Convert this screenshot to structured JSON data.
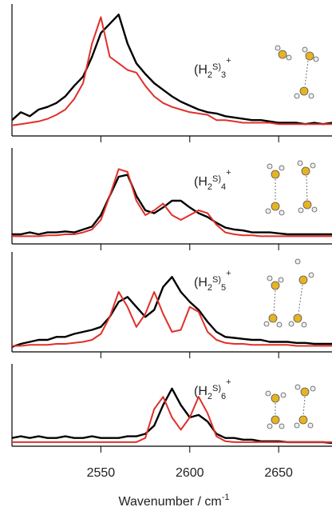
{
  "chart_data": [
    {
      "type": "line",
      "label": [
        "(H",
        "2",
        "S)",
        "3",
        "+"
      ],
      "x": [
        2500,
        2505,
        2510,
        2515,
        2520,
        2525,
        2530,
        2535,
        2540,
        2545,
        2550,
        2555,
        2560,
        2565,
        2570,
        2575,
        2580,
        2585,
        2590,
        2595,
        2600,
        2605,
        2610,
        2615,
        2620,
        2625,
        2630,
        2635,
        2640,
        2645,
        2650,
        2655,
        2660,
        2665,
        2670,
        2675,
        2680
      ],
      "xlim": [
        2500,
        2680
      ],
      "ylim": [
        0,
        1
      ],
      "series": [
        {
          "color": "#000000",
          "values": [
            0.12,
            0.18,
            0.15,
            0.2,
            0.22,
            0.25,
            0.3,
            0.38,
            0.45,
            0.6,
            0.78,
            0.85,
            0.92,
            0.7,
            0.55,
            0.47,
            0.4,
            0.35,
            0.3,
            0.26,
            0.23,
            0.2,
            0.18,
            0.17,
            0.15,
            0.14,
            0.13,
            0.12,
            0.12,
            0.11,
            0.1,
            0.1,
            0.1,
            0.09,
            0.1,
            0.09,
            0.1
          ]
        },
        {
          "color": "#e0302a",
          "values": [
            0.08,
            0.09,
            0.1,
            0.11,
            0.13,
            0.16,
            0.2,
            0.28,
            0.4,
            0.7,
            0.9,
            0.6,
            0.55,
            0.5,
            0.48,
            0.38,
            0.3,
            0.25,
            0.22,
            0.2,
            0.18,
            0.17,
            0.16,
            0.12,
            0.12,
            0.11,
            0.1,
            0.1,
            0.1,
            0.1,
            0.09,
            0.09,
            0.09,
            0.09,
            0.09,
            0.09,
            0.09
          ]
        }
      ]
    },
    {
      "type": "line",
      "label": [
        "(H",
        "2",
        "S)",
        "4",
        "+"
      ],
      "x": [
        2500,
        2505,
        2510,
        2515,
        2520,
        2525,
        2530,
        2535,
        2540,
        2545,
        2550,
        2555,
        2560,
        2565,
        2570,
        2575,
        2580,
        2585,
        2590,
        2595,
        2600,
        2605,
        2610,
        2615,
        2620,
        2625,
        2630,
        2635,
        2640,
        2645,
        2650,
        2655,
        2660,
        2665,
        2670,
        2675,
        2680
      ],
      "xlim": [
        2500,
        2680
      ],
      "ylim": [
        0,
        1
      ],
      "series": [
        {
          "color": "#000000",
          "values": [
            0.1,
            0.1,
            0.12,
            0.1,
            0.12,
            0.12,
            0.13,
            0.12,
            0.15,
            0.18,
            0.3,
            0.5,
            0.7,
            0.72,
            0.5,
            0.35,
            0.32,
            0.38,
            0.45,
            0.45,
            0.38,
            0.32,
            0.28,
            0.22,
            0.17,
            0.15,
            0.14,
            0.12,
            0.12,
            0.12,
            0.11,
            0.1,
            0.1,
            0.1,
            0.1,
            0.1,
            0.1
          ]
        },
        {
          "color": "#e0302a",
          "values": [
            0.08,
            0.08,
            0.08,
            0.08,
            0.09,
            0.09,
            0.1,
            0.1,
            0.12,
            0.15,
            0.25,
            0.5,
            0.78,
            0.75,
            0.45,
            0.3,
            0.35,
            0.42,
            0.3,
            0.25,
            0.3,
            0.35,
            0.32,
            0.2,
            0.12,
            0.1,
            0.09,
            0.09,
            0.08,
            0.08,
            0.08,
            0.08,
            0.08,
            0.08,
            0.08,
            0.08,
            0.08
          ]
        }
      ]
    },
    {
      "type": "line",
      "label": [
        "(H",
        "2",
        "S)",
        "5",
        "+"
      ],
      "x": [
        2500,
        2505,
        2510,
        2515,
        2520,
        2525,
        2530,
        2535,
        2540,
        2545,
        2550,
        2555,
        2560,
        2565,
        2570,
        2575,
        2580,
        2585,
        2590,
        2595,
        2600,
        2605,
        2610,
        2615,
        2620,
        2625,
        2630,
        2635,
        2640,
        2645,
        2650,
        2655,
        2660,
        2665,
        2670,
        2675,
        2680
      ],
      "xlim": [
        2500,
        2680
      ],
      "ylim": [
        0,
        1
      ],
      "series": [
        {
          "color": "#000000",
          "values": [
            0.05,
            0.08,
            0.1,
            0.12,
            0.12,
            0.15,
            0.15,
            0.18,
            0.2,
            0.22,
            0.25,
            0.35,
            0.5,
            0.55,
            0.45,
            0.35,
            0.42,
            0.65,
            0.75,
            0.6,
            0.5,
            0.42,
            0.3,
            0.2,
            0.15,
            0.14,
            0.13,
            0.12,
            0.12,
            0.1,
            0.1,
            0.1,
            0.09,
            0.09,
            0.08,
            0.08,
            0.08
          ]
        },
        {
          "color": "#e0302a",
          "values": [
            0.06,
            0.06,
            0.07,
            0.07,
            0.07,
            0.08,
            0.08,
            0.09,
            0.1,
            0.12,
            0.18,
            0.35,
            0.6,
            0.45,
            0.25,
            0.38,
            0.6,
            0.38,
            0.2,
            0.22,
            0.45,
            0.4,
            0.2,
            0.12,
            0.09,
            0.08,
            0.08,
            0.07,
            0.07,
            0.07,
            0.07,
            0.07,
            0.06,
            0.06,
            0.06,
            0.06,
            0.06
          ]
        }
      ]
    },
    {
      "type": "line",
      "label": [
        "(H",
        "2",
        "S)",
        "6",
        "+"
      ],
      "x": [
        2500,
        2505,
        2510,
        2515,
        2520,
        2525,
        2530,
        2535,
        2540,
        2545,
        2550,
        2555,
        2560,
        2565,
        2570,
        2575,
        2580,
        2585,
        2590,
        2595,
        2600,
        2605,
        2610,
        2615,
        2620,
        2625,
        2630,
        2635,
        2640,
        2645,
        2650,
        2655,
        2660,
        2665,
        2670,
        2675,
        2680
      ],
      "xlim": [
        2500,
        2680
      ],
      "ylim": [
        0,
        1
      ],
      "xticks": [
        2550,
        2600,
        2650
      ],
      "xlabel": [
        "Wavenumber / cm",
        "-1"
      ],
      "series": [
        {
          "color": "#000000",
          "values": [
            0.1,
            0.12,
            0.1,
            0.12,
            0.1,
            0.1,
            0.12,
            0.1,
            0.1,
            0.12,
            0.1,
            0.1,
            0.1,
            0.12,
            0.12,
            0.15,
            0.25,
            0.5,
            0.7,
            0.5,
            0.35,
            0.38,
            0.3,
            0.15,
            0.1,
            0.1,
            0.08,
            0.08,
            0.06,
            0.06,
            0.06,
            0.05,
            0.05,
            0.05,
            0.05,
            0.05,
            0.04
          ]
        },
        {
          "color": "#e0302a",
          "values": [
            0.05,
            0.05,
            0.05,
            0.05,
            0.05,
            0.05,
            0.05,
            0.05,
            0.05,
            0.05,
            0.05,
            0.05,
            0.05,
            0.05,
            0.05,
            0.1,
            0.45,
            0.6,
            0.35,
            0.2,
            0.35,
            0.6,
            0.4,
            0.12,
            0.06,
            0.05,
            0.05,
            0.05,
            0.05,
            0.05,
            0.05,
            0.05,
            0.05,
            0.05,
            0.05,
            0.05,
            0.05
          ]
        }
      ]
    }
  ]
}
